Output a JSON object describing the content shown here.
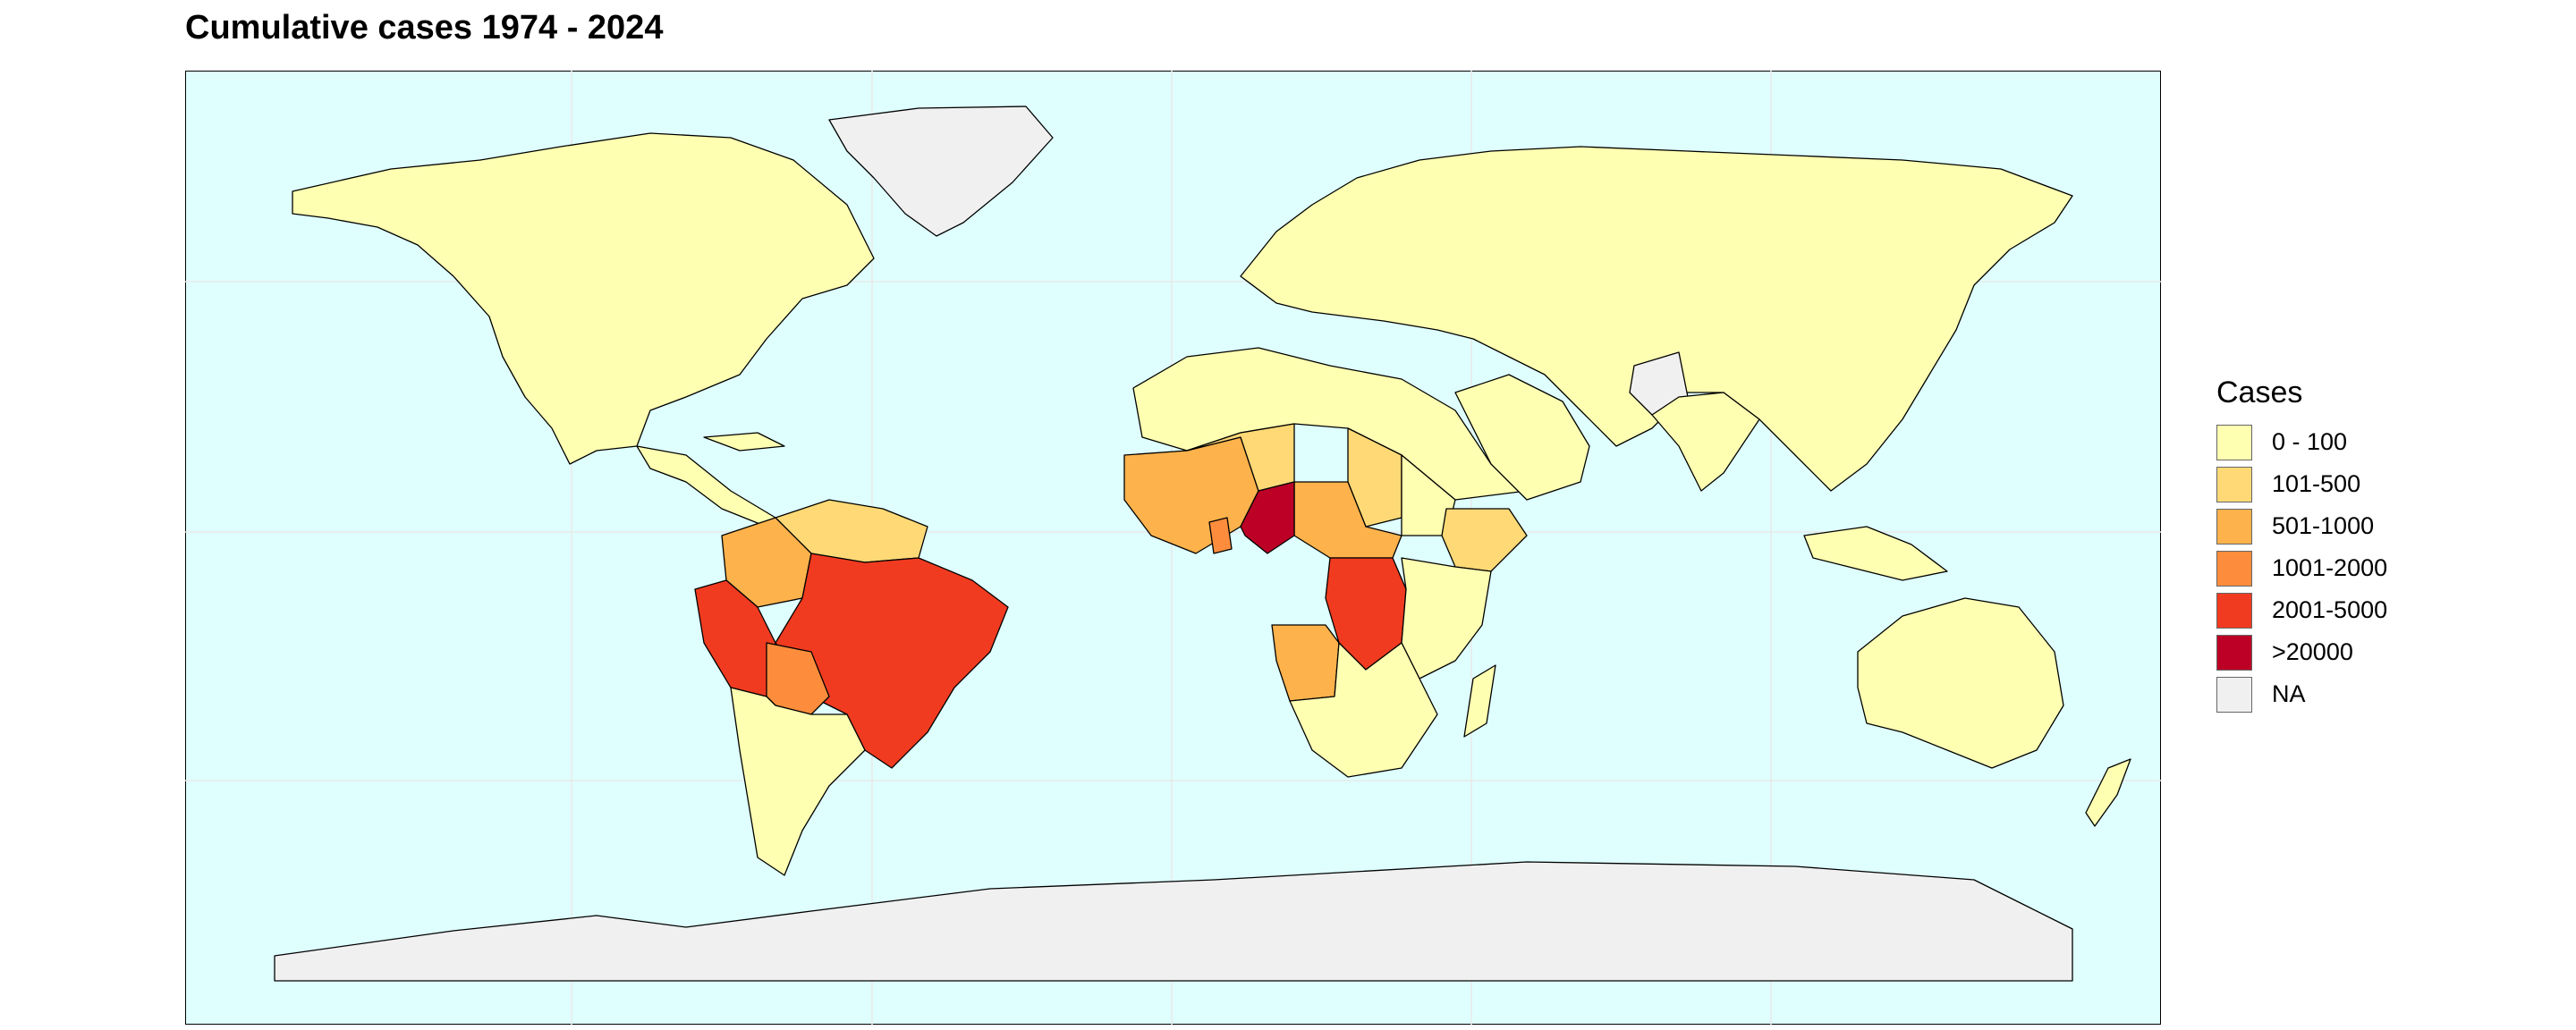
{
  "title": "Cumulative cases 1974 - 2024",
  "legend": {
    "title": "Cases",
    "items": [
      {
        "label": "0 - 100",
        "color": "#FFFFB2"
      },
      {
        "label": "101-500",
        "color": "#FED976"
      },
      {
        "label": "501-1000",
        "color": "#FDB24C"
      },
      {
        "label": "1001-2000",
        "color": "#FD8D3C"
      },
      {
        "label": "2001-5000",
        "color": "#F03B20"
      },
      {
        "label": ">20000",
        "color": "#BD0026"
      },
      {
        "label": "NA",
        "color": "#F0F0F0"
      }
    ]
  },
  "map": {
    "projection": "equirectangular",
    "ocean_color": "#DFFFFF",
    "grid": true,
    "regions_by_category": {
      "0 - 100": [
        "North America",
        "Russia",
        "China",
        "Europe",
        "North Africa",
        "Middle East",
        "Southeast Asia",
        "Australia",
        "New Zealand",
        "Southern South America",
        "Southern Africa",
        "East Africa"
      ],
      "101-500": [
        "Mali",
        "Chad",
        "Sudan",
        "Ethiopia",
        "Guyana",
        "Suriname",
        "Venezuela"
      ],
      "501-1000": [
        "Colombia",
        "Angola",
        "Central African Republic",
        "West Africa"
      ],
      "1001-2000": [
        "Bolivia",
        "Ghana"
      ],
      "2001-5000": [
        "Brazil",
        "Peru",
        "Democratic Republic of the Congo"
      ],
      ">20000": [
        "Nigeria"
      ],
      "NA": [
        "Greenland",
        "Antarctica",
        "Pakistan"
      ]
    }
  }
}
